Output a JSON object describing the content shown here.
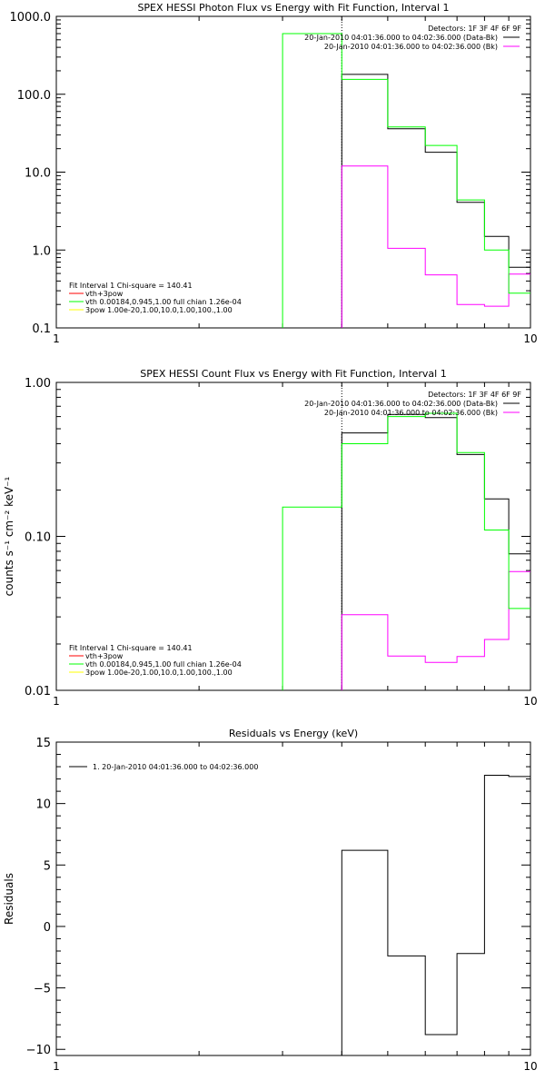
{
  "chart_data": [
    {
      "type": "line",
      "title": "SPEX HESSI Photon Flux vs Energy with Fit Function, Interval 1",
      "xlabel": "",
      "ylabel": "",
      "xscale": "log",
      "yscale": "log",
      "xlim": [
        1,
        10
      ],
      "ylim": [
        0.1,
        1000
      ],
      "x_tick_labels": [
        {
          "value": 1,
          "label": "1"
        },
        {
          "value": 10,
          "label": "10"
        }
      ],
      "y_tick_labels": [
        {
          "value": 0.1,
          "label": "0.1"
        },
        {
          "value": 1,
          "label": "1.0"
        },
        {
          "value": 10,
          "label": "10.0"
        },
        {
          "value": 100,
          "label": "100.0"
        },
        {
          "value": 1000,
          "label": "1000.0"
        }
      ],
      "vline": {
        "x": 4.0,
        "color": "#000000",
        "style": "dotted"
      },
      "legend_top": {
        "placement": "top-right",
        "header": "Detectors: 1F 3F 4F 6F 9F",
        "entries": [
          {
            "text": "20-Jan-2010 04:01:36.000 to 04:02:36.000 (Data-Bk)",
            "color": "#000000"
          },
          {
            "text": "20-Jan-2010 04:01:36.000 to 04:02:36.000 (Bk)",
            "color": "#ff00ff"
          }
        ]
      },
      "legend_bottom": {
        "placement": "bottom-left",
        "header": "Fit Interval 1    Chi-square = 140.41",
        "entries": [
          {
            "text": "vth+3pow",
            "color": "#ff0000"
          },
          {
            "text": "vth 0.00184,0.945,1.00  full chian 1.26e-04",
            "color": "#00ff00"
          },
          {
            "text": "3pow 1.00e-20,1.00,10.0,1.00,100.,1.00",
            "color": "#ffff00"
          }
        ]
      },
      "series": [
        {
          "color": "#000000",
          "edges": [
            4.0,
            5.0,
            6.0,
            7.0,
            8.0,
            9.0,
            10.0
          ],
          "values": [
            180,
            36,
            18,
            4.1,
            1.5,
            0.6
          ]
        },
        {
          "color": "#ff00ff",
          "edges": [
            4.0,
            5.0,
            6.0,
            7.0,
            8.0,
            9.0,
            10.0
          ],
          "values": [
            12,
            1.05,
            0.48,
            0.2,
            0.19,
            0.49
          ]
        },
        {
          "color": "#00ff00",
          "edges": [
            3.0,
            4.0,
            5.0,
            6.0,
            7.0,
            8.0,
            9.0,
            10.0
          ],
          "values": [
            600,
            155,
            38,
            22,
            4.4,
            1.0,
            0.28
          ]
        }
      ]
    },
    {
      "type": "line",
      "title": "SPEX HESSI Count Flux vs Energy with Fit Function, Interval 1",
      "xlabel": "",
      "ylabel": "counts s⁻¹ cm⁻² keV⁻¹",
      "xscale": "log",
      "yscale": "log",
      "xlim": [
        1,
        10
      ],
      "ylim": [
        0.01,
        1.0
      ],
      "x_tick_labels": [
        {
          "value": 1,
          "label": "1"
        },
        {
          "value": 10,
          "label": "10"
        }
      ],
      "y_tick_labels": [
        {
          "value": 0.01,
          "label": "0.01"
        },
        {
          "value": 0.1,
          "label": "0.10"
        },
        {
          "value": 1.0,
          "label": "1.00"
        }
      ],
      "vline": {
        "x": 4.0,
        "color": "#000000",
        "style": "dotted"
      },
      "legend_top": {
        "placement": "top-right",
        "header": "Detectors: 1F 3F 4F 6F 9F",
        "entries": [
          {
            "text": "20-Jan-2010 04:01:36.000 to 04:02:36.000 (Data-Bk)",
            "color": "#000000"
          },
          {
            "text": "20-Jan-2010 04:01:36.000 to 04:02:36.000 (Bk)",
            "color": "#ff00ff"
          }
        ]
      },
      "legend_bottom": {
        "placement": "bottom-left",
        "header": "Fit Interval 1    Chi-square = 140.41",
        "entries": [
          {
            "text": "vth+3pow",
            "color": "#ff0000"
          },
          {
            "text": "vth 0.00184,0.945,1.00  full chian 1.26e-04",
            "color": "#00ff00"
          },
          {
            "text": "3pow 1.00e-20,1.00,10.0,1.00,100.,1.00",
            "color": "#ffff00"
          }
        ]
      },
      "series": [
        {
          "color": "#000000",
          "edges": [
            4.0,
            5.0,
            6.0,
            7.0,
            8.0,
            9.0,
            10.0
          ],
          "values": [
            0.47,
            0.62,
            0.59,
            0.34,
            0.175,
            0.077
          ]
        },
        {
          "color": "#ff00ff",
          "edges": [
            4.0,
            5.0,
            6.0,
            7.0,
            8.0,
            9.0,
            10.0
          ],
          "values": [
            0.031,
            0.0167,
            0.0152,
            0.0166,
            0.0214,
            0.059
          ]
        },
        {
          "color": "#00ff00",
          "edges": [
            3.0,
            4.0,
            5.0,
            6.0,
            7.0,
            8.0,
            9.0,
            10.0
          ],
          "values": [
            0.155,
            0.4,
            0.6,
            0.63,
            0.35,
            0.11,
            0.034
          ]
        }
      ]
    },
    {
      "type": "line",
      "title": "Residuals vs Energy (keV)",
      "xlabel": "",
      "ylabel": "Residuals",
      "xscale": "log",
      "yscale": "linear",
      "xlim": [
        1,
        10
      ],
      "ylim": [
        -10.5,
        15
      ],
      "x_tick_labels": [
        {
          "value": 1,
          "label": "1"
        },
        {
          "value": 10,
          "label": "10"
        }
      ],
      "y_tick_labels": [
        {
          "value": -10,
          "label": "−10"
        },
        {
          "value": -5,
          "label": "−5"
        },
        {
          "value": 0,
          "label": "0"
        },
        {
          "value": 5,
          "label": "5"
        },
        {
          "value": 10,
          "label": "10"
        },
        {
          "value": 15,
          "label": "15"
        }
      ],
      "legend_top": {
        "placement": "top-left",
        "entries": [
          {
            "text": "1. 20-Jan-2010 04:01:36.000 to 04:02:36.000",
            "color": "#000000"
          }
        ]
      },
      "series": [
        {
          "color": "#000000",
          "edges": [
            4.0,
            5.0,
            6.0,
            7.0,
            8.0,
            9.0,
            10.0
          ],
          "values": [
            6.2,
            -2.4,
            -8.8,
            -2.2,
            12.3,
            12.2
          ],
          "drop_to": -10.5
        }
      ]
    }
  ]
}
